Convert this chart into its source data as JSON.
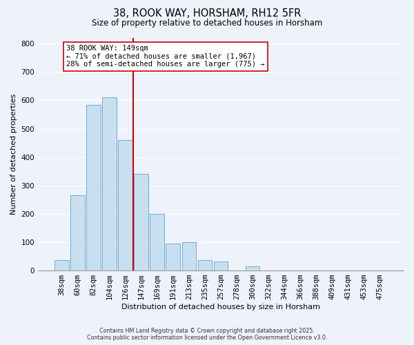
{
  "title": "38, ROOK WAY, HORSHAM, RH12 5FR",
  "subtitle": "Size of property relative to detached houses in Horsham",
  "xlabel": "Distribution of detached houses by size in Horsham",
  "ylabel": "Number of detached properties",
  "bar_labels": [
    "38sqm",
    "60sqm",
    "82sqm",
    "104sqm",
    "126sqm",
    "147sqm",
    "169sqm",
    "191sqm",
    "213sqm",
    "235sqm",
    "257sqm",
    "278sqm",
    "300sqm",
    "322sqm",
    "344sqm",
    "366sqm",
    "388sqm",
    "409sqm",
    "431sqm",
    "453sqm",
    "475sqm"
  ],
  "bar_values": [
    37,
    265,
    585,
    610,
    460,
    340,
    200,
    95,
    100,
    37,
    33,
    0,
    15,
    0,
    0,
    0,
    0,
    0,
    0,
    0,
    0
  ],
  "bar_color": "#c8dff0",
  "bar_edge_color": "#6aaed6",
  "vline_color": "#cc0000",
  "annotation_title": "38 ROOK WAY: 149sqm",
  "annotation_line1": "← 71% of detached houses are smaller (1,967)",
  "annotation_line2": "28% of semi-detached houses are larger (775) →",
  "annotation_box_color": "white",
  "annotation_box_edge": "#cc0000",
  "ylim": [
    0,
    820
  ],
  "yticks": [
    0,
    100,
    200,
    300,
    400,
    500,
    600,
    700,
    800
  ],
  "bg_color": "#eef2fb",
  "grid_color": "#ffffff",
  "footer1": "Contains HM Land Registry data © Crown copyright and database right 2025.",
  "footer2": "Contains public sector information licensed under the Open Government Licence v3.0."
}
